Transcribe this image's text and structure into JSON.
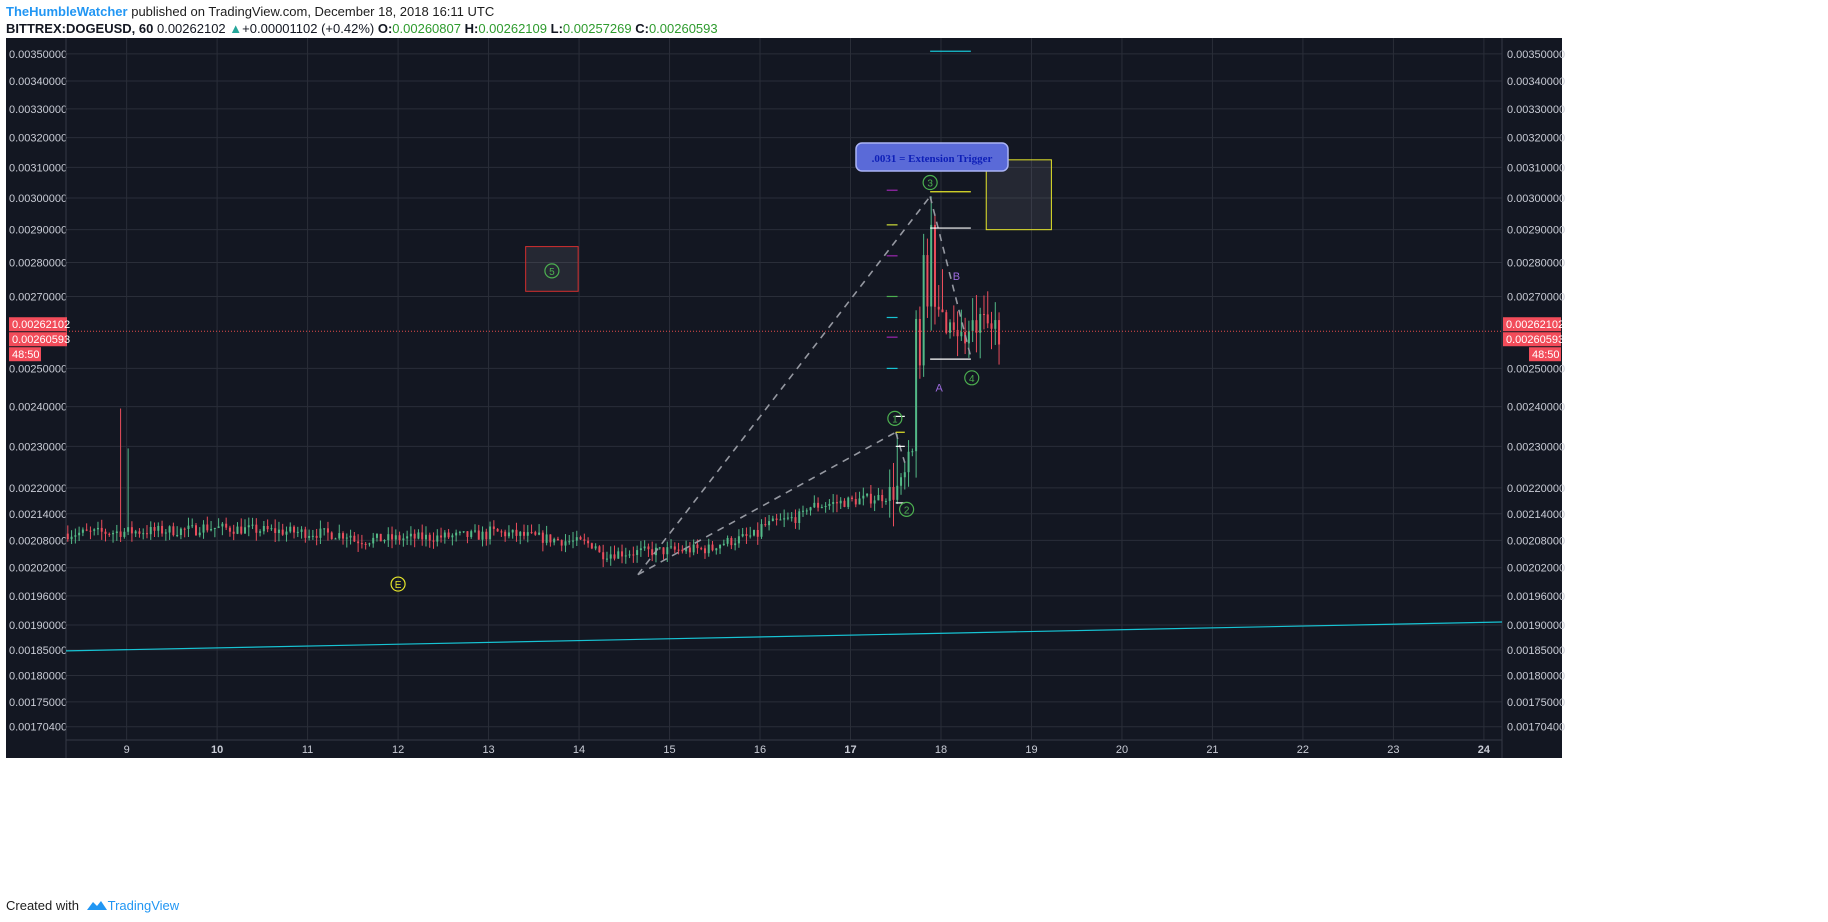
{
  "header": {
    "author": "TheHumbleWatcher",
    "published": "published on TradingView.com, December 18, 2018 16:11 UTC",
    "symbol": "BITTREX:DOGEUSD, 60",
    "last": "0.00262102",
    "change": "+0.00001102 (+0.42%)",
    "o_label": "O:",
    "o": "0.00260807",
    "h_label": "H:",
    "h": "0.00262109",
    "l_label": "L:",
    "l": "0.00257269",
    "c_label": "C:",
    "c": "0.00260593",
    "up_arrow": "▲"
  },
  "footer": {
    "created_with": "Created with",
    "brand": "TradingView"
  },
  "colors": {
    "background": "#131722",
    "grid": "#2a2e39",
    "bull": "#53b987",
    "bear": "#eb4d5c",
    "trendline": "#17c3d3",
    "price_line": "#e54b4b",
    "label_bg": "#f24c5a"
  },
  "chart_data": {
    "type": "candlestick",
    "x_tick_labels": [
      "9",
      "10",
      "11",
      "12",
      "13",
      "14",
      "15",
      "16",
      "17",
      "18",
      "19",
      "20",
      "21",
      "22",
      "23",
      "24"
    ],
    "y_tick_labels": [
      "0.00350000",
      "0.00340000",
      "0.00330000",
      "0.00320000",
      "0.00310000",
      "0.00300000",
      "0.00290000",
      "0.00280000",
      "0.00270000",
      "0.00250000",
      "0.00240000",
      "0.00230000",
      "0.00220000",
      "0.00214000",
      "0.00208000",
      "0.00202000",
      "0.00196000",
      "0.00190000",
      "0.00185000",
      "0.00180000",
      "0.00175000",
      "0.00170400"
    ],
    "y_scale": "log",
    "ylim": [
      0.00168,
      0.00356
    ],
    "xlim": [
      8.33,
      24.2
    ],
    "price_labels": {
      "last": "0.00262102",
      "close": "0.00260593",
      "countdown": "48:50"
    },
    "trendline": {
      "start": [
        8.33,
        0.001848
      ],
      "end": [
        24.2,
        0.001906
      ]
    },
    "price_segments": [
      {
        "from": 8.33,
        "to": 9.8,
        "price": 0.002095
      },
      {
        "from": 9.8,
        "to": 11.5,
        "price": 0.00211
      },
      {
        "from": 11.5,
        "to": 13.0,
        "price": 0.00208
      },
      {
        "from": 13.0,
        "to": 14.2,
        "price": 0.0021
      },
      {
        "from": 14.2,
        "to": 15.5,
        "price": 0.00205
      },
      {
        "from": 15.5,
        "to": 16.0,
        "price": 0.00207
      },
      {
        "from": 16.0,
        "to": 16.5,
        "price": 0.00211
      },
      {
        "from": 16.5,
        "to": 17.45,
        "price": 0.002155
      },
      {
        "from": 17.45,
        "to": 17.55,
        "price": 0.0022
      },
      {
        "from": 17.55,
        "to": 17.7,
        "price": 0.00219
      },
      {
        "from": 17.7,
        "to": 17.8,
        "price": 0.00235
      },
      {
        "from": 17.8,
        "to": 17.95,
        "price": 0.00265
      },
      {
        "from": 17.95,
        "to": 18.2,
        "price": 0.00265
      },
      {
        "from": 18.2,
        "to": 18.35,
        "price": 0.00258
      },
      {
        "from": 18.35,
        "to": 18.65,
        "price": 0.00261
      }
    ],
    "spikes": [
      {
        "x": 8.93,
        "high": 0.002395
      },
      {
        "x": 9.0,
        "high": 0.002295
      },
      {
        "x": 17.5,
        "high": 0.00233
      },
      {
        "x": 17.88,
        "high": 0.003005
      },
      {
        "x": 17.93,
        "high": 0.00295
      },
      {
        "x": 18.02,
        "high": 0.00278
      }
    ],
    "wave_labels": [
      {
        "text": "1",
        "x": 17.49,
        "y": 0.00237,
        "color": "#4caf50"
      },
      {
        "text": "2",
        "x": 17.62,
        "y": 0.00215,
        "color": "#4caf50"
      },
      {
        "text": "3",
        "x": 17.88,
        "y": 0.00305,
        "color": "#4caf50"
      },
      {
        "text": "4",
        "x": 18.34,
        "y": 0.002475,
        "color": "#4caf50"
      },
      {
        "text": "5",
        "x": 13.7,
        "y": 0.002775,
        "color": "#4caf50"
      },
      {
        "text": "E",
        "x": 12.0,
        "y": 0.001985,
        "color": "#e6e62a"
      },
      {
        "text": "A",
        "x": 17.98,
        "y": 0.00245,
        "color": "#9c6ade"
      },
      {
        "text": "B",
        "x": 18.17,
        "y": 0.00276,
        "color": "#9c6ade"
      }
    ],
    "dashed_lines": [
      [
        [
          14.65,
          0.002005
        ],
        [
          17.88,
          0.003005
        ]
      ],
      [
        [
          14.65,
          0.002005
        ],
        [
          17.5,
          0.002335
        ]
      ],
      [
        [
          17.88,
          0.003005
        ],
        [
          18.33,
          0.00253
        ]
      ],
      [
        [
          17.5,
          0.002335
        ],
        [
          17.6,
          0.00226
        ]
      ]
    ],
    "callout": {
      "text": ".0031 = Extension Trigger",
      "box_x": [
        13.37,
        14.37
      ],
      "box_y": [
        0.00324,
        0.00316
      ],
      "pointer": [
        17.82,
        0.003125
      ]
    },
    "boxes": [
      {
        "x": [
          13.41,
          13.99
        ],
        "y": [
          0.002848,
          0.002715
        ],
        "stroke": "#d32f2f",
        "fill": "rgba(120,123,134,0.18)"
      },
      {
        "x": [
          18.5,
          19.22
        ],
        "y": [
          0.003125,
          0.0029
        ],
        "stroke": "#e6e62a",
        "fill": "rgba(120,123,134,0.18)"
      }
    ],
    "level_ticks": [
      {
        "x": [
          17.88,
          18.33
        ],
        "y": 0.00351,
        "color": "#17c3d3"
      },
      {
        "x": [
          17.88,
          18.33
        ],
        "y": 0.003135,
        "color": "#4caf50"
      },
      {
        "x": [
          17.88,
          18.33
        ],
        "y": 0.00302,
        "color": "#e6e62a"
      },
      {
        "x": [
          17.88,
          18.33
        ],
        "y": 0.002905,
        "color": "#ffffff"
      },
      {
        "x": [
          17.88,
          18.33
        ],
        "y": 0.002525,
        "color": "#ffffff"
      },
      {
        "x": [
          17.5,
          17.6
        ],
        "y": 0.002375,
        "color": "#ffffff"
      },
      {
        "x": [
          17.5,
          17.6
        ],
        "y": 0.002335,
        "color": "#e6e62a"
      },
      {
        "x": [
          17.5,
          17.6
        ],
        "y": 0.0023,
        "color": "#ffffff"
      },
      {
        "x": [
          17.5,
          17.6
        ],
        "y": 0.002165,
        "color": "#ffffff"
      },
      {
        "x": [
          17.4,
          17.52
        ],
        "y": 0.003025,
        "color": "#9c27b0"
      },
      {
        "x": [
          17.4,
          17.52
        ],
        "y": 0.002915,
        "color": "#cddc39"
      },
      {
        "x": [
          17.4,
          17.52
        ],
        "y": 0.00282,
        "color": "#9c27b0"
      },
      {
        "x": [
          17.4,
          17.52
        ],
        "y": 0.0027,
        "color": "#4caf50"
      },
      {
        "x": [
          17.4,
          17.52
        ],
        "y": 0.00264,
        "color": "#17c3d3"
      },
      {
        "x": [
          17.4,
          17.52
        ],
        "y": 0.002585,
        "color": "#9c27b0"
      },
      {
        "x": [
          17.4,
          17.52
        ],
        "y": 0.0025,
        "color": "#17c3d3"
      }
    ]
  }
}
